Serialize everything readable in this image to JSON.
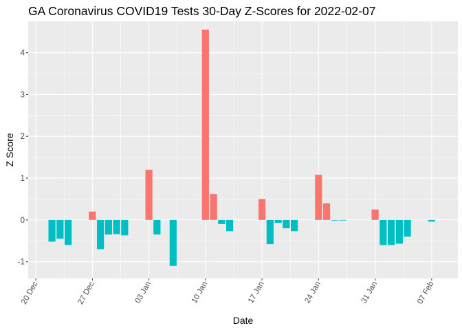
{
  "chart_data": {
    "type": "bar",
    "title": "GA Coronavirus COVID19 Tests 30-Day Z-Scores for 2022-02-07",
    "xlabel": "Date",
    "ylabel": "Z Score",
    "x_start": "2021-12-20",
    "ylim": [
      -1.4,
      4.75
    ],
    "yticks": [
      -1,
      0,
      1,
      2,
      3,
      4
    ],
    "xticks": [
      {
        "day": 0,
        "label": "20 Dec"
      },
      {
        "day": 7,
        "label": "27 Dec"
      },
      {
        "day": 14,
        "label": "03 Jan"
      },
      {
        "day": 21,
        "label": "10 Jan"
      },
      {
        "day": 28,
        "label": "17 Jan"
      },
      {
        "day": 35,
        "label": "24 Jan"
      },
      {
        "day": 42,
        "label": "31 Jan"
      },
      {
        "day": 49,
        "label": "07 Feb"
      }
    ],
    "grid": true,
    "legend": "none",
    "colors": {
      "positive": "#F8766D",
      "negative": "#00BFC4",
      "panel": "#EBEBEB",
      "grid": "#FFFFFF"
    },
    "dates": [
      "2021-12-22",
      "2021-12-23",
      "2021-12-24",
      "2021-12-27",
      "2021-12-28",
      "2021-12-29",
      "2021-12-30",
      "2021-12-31",
      "2022-01-03",
      "2022-01-04",
      "2022-01-06",
      "2022-01-10",
      "2022-01-11",
      "2022-01-12",
      "2022-01-13",
      "2022-01-17",
      "2022-01-18",
      "2022-01-19",
      "2022-01-20",
      "2022-01-21",
      "2022-01-24",
      "2022-01-25",
      "2022-01-26",
      "2022-01-27",
      "2022-01-31",
      "2022-02-01",
      "2022-02-02",
      "2022-02-03",
      "2022-02-04",
      "2022-02-07"
    ],
    "values": [
      -0.52,
      -0.45,
      -0.6,
      0.2,
      -0.7,
      -0.35,
      -0.34,
      -0.37,
      1.2,
      -0.35,
      -1.1,
      4.55,
      0.62,
      -0.1,
      -0.27,
      0.5,
      -0.58,
      -0.07,
      -0.2,
      -0.27,
      1.08,
      0.4,
      -0.01,
      -0.01,
      0.25,
      -0.6,
      -0.6,
      -0.57,
      -0.4,
      -0.04
    ]
  }
}
